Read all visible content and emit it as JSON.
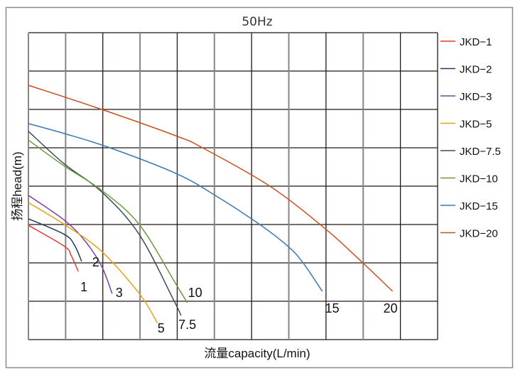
{
  "chart_data": {
    "type": "line",
    "title": "50Hz",
    "xlabel": "流量capacity(L/min)",
    "ylabel": "扬程head(m)",
    "grid": true,
    "legend_position": "right",
    "x_grid_divisions": 11,
    "y_grid_divisions": 8,
    "xlim": [
      0,
      11
    ],
    "ylim": [
      0,
      8
    ],
    "series": [
      {
        "name": "JKD-1",
        "end_label": "1",
        "color": "#e03a2e",
        "points": [
          [
            0,
            2.98
          ],
          [
            0.97,
            2.43
          ],
          [
            1.15,
            2.19
          ],
          [
            1.34,
            1.78
          ]
        ]
      },
      {
        "name": "JKD-2",
        "end_label": "2",
        "color": "#1f3a5f",
        "points": [
          [
            0,
            3.15
          ],
          [
            0.97,
            2.74
          ],
          [
            1.24,
            2.46
          ],
          [
            1.43,
            2.04
          ]
        ]
      },
      {
        "name": "JKD-3",
        "end_label": "3",
        "color": "#7b3fa0",
        "points": [
          [
            0,
            3.76
          ],
          [
            0.97,
            3.11
          ],
          [
            1.53,
            2.56
          ],
          [
            1.97,
            1.91
          ],
          [
            2.25,
            1.2
          ]
        ]
      },
      {
        "name": "JKD-5",
        "end_label": "5",
        "color": "#e0a51c",
        "points": [
          [
            0,
            3.57
          ],
          [
            0.97,
            3.0
          ],
          [
            1.97,
            2.3
          ],
          [
            2.98,
            1.2
          ],
          [
            3.47,
            0.43
          ]
        ]
      },
      {
        "name": "JKD-7.5",
        "end_label": "7.5",
        "color": "#3d4a5a",
        "points": [
          [
            0,
            5.43
          ],
          [
            0.95,
            4.59
          ],
          [
            1.97,
            3.85
          ],
          [
            2.98,
            2.74
          ],
          [
            3.93,
            0.98
          ],
          [
            4.1,
            0.63
          ]
        ]
      },
      {
        "name": "JKD-10",
        "end_label": "10",
        "color": "#6a9a3f",
        "points": [
          [
            0,
            5.2
          ],
          [
            0.97,
            4.52
          ],
          [
            1.97,
            3.89
          ],
          [
            2.98,
            3.0
          ],
          [
            3.97,
            1.44
          ],
          [
            4.27,
            0.96
          ]
        ]
      },
      {
        "name": "JKD-15",
        "end_label": "15",
        "color": "#3a78b5",
        "points": [
          [
            0,
            5.63
          ],
          [
            0.97,
            5.37
          ],
          [
            2.19,
            5.0
          ],
          [
            3.97,
            4.33
          ],
          [
            5.02,
            3.76
          ],
          [
            6.22,
            3.0
          ],
          [
            6.98,
            2.43
          ],
          [
            7.37,
            2.02
          ],
          [
            7.9,
            1.26
          ]
        ]
      },
      {
        "name": "JKD-20",
        "end_label": "20",
        "color": "#c8501e",
        "points": [
          [
            0,
            6.63
          ],
          [
            1.97,
            6.0
          ],
          [
            3.97,
            5.31
          ],
          [
            4.68,
            5.0
          ],
          [
            6.49,
            4.0
          ],
          [
            7.98,
            2.89
          ],
          [
            8.99,
            2.0
          ],
          [
            9.79,
            1.26
          ]
        ]
      }
    ]
  }
}
